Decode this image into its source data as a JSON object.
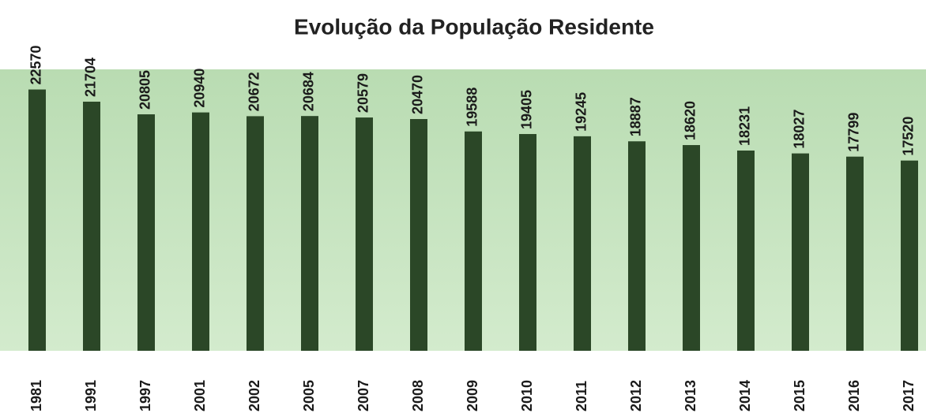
{
  "chart_data": {
    "type": "bar",
    "title": "Evolução da População Residente",
    "categories": [
      "1981",
      "1991",
      "1997",
      "2001",
      "2002",
      "2005",
      "2007",
      "2008",
      "2009",
      "2010",
      "2011",
      "2012",
      "2013",
      "2014",
      "2015",
      "2016",
      "2017"
    ],
    "values": [
      22570,
      21704,
      20805,
      20940,
      20672,
      20684,
      20579,
      20470,
      19588,
      19405,
      19245,
      18887,
      18620,
      18231,
      18027,
      17799,
      17520
    ],
    "color": "#2b4727",
    "ylim": [
      4000,
      24000
    ]
  }
}
